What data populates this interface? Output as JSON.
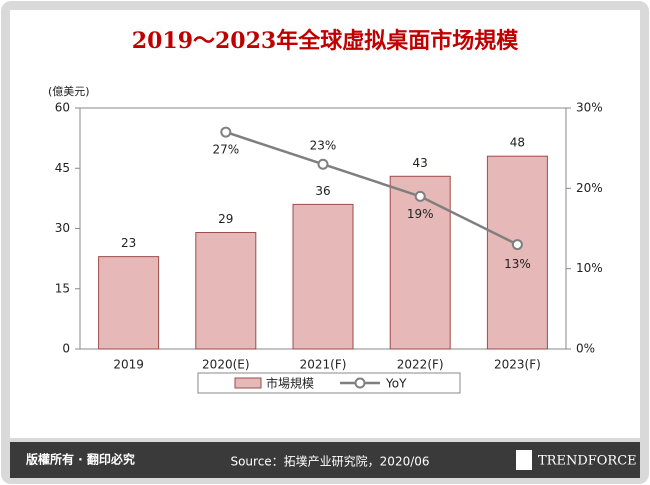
{
  "chart_data": {
    "type": "bar",
    "title": "2019～2023年全球虛拟桌面市场規模",
    "y_label": "(億美元)",
    "categories": [
      "2019",
      "2020(E)",
      "2021(F)",
      "2022(F)",
      "2023(F)"
    ],
    "series": [
      {
        "name": "市場規模",
        "color": "#e6b8b7",
        "values": [
          23,
          29,
          36,
          43,
          48
        ]
      },
      {
        "name": "YoY",
        "color": "#7f7f7f",
        "axis": "y2",
        "type": "line",
        "values": [
          null,
          27,
          23,
          19,
          13
        ],
        "value_labels": [
          null,
          "27%",
          "23%",
          "19%",
          "13%"
        ]
      }
    ],
    "ylim": [
      0,
      60
    ],
    "yticks": [
      0,
      15,
      30,
      45,
      60
    ],
    "y2lim": [
      0,
      30
    ],
    "y2ticks": [
      {
        "value": 0,
        "label": "0%"
      },
      {
        "value": 10,
        "label": "10%"
      },
      {
        "value": 20,
        "label": "20%"
      },
      {
        "value": 30,
        "label": "30%"
      }
    ],
    "grid": false,
    "legend": "bottom"
  },
  "footer": {
    "rights": "版權所有 · 翻印必究",
    "source": "Source：拓墣产业研究院，2020/06",
    "logo": "TRENDFORCE"
  }
}
